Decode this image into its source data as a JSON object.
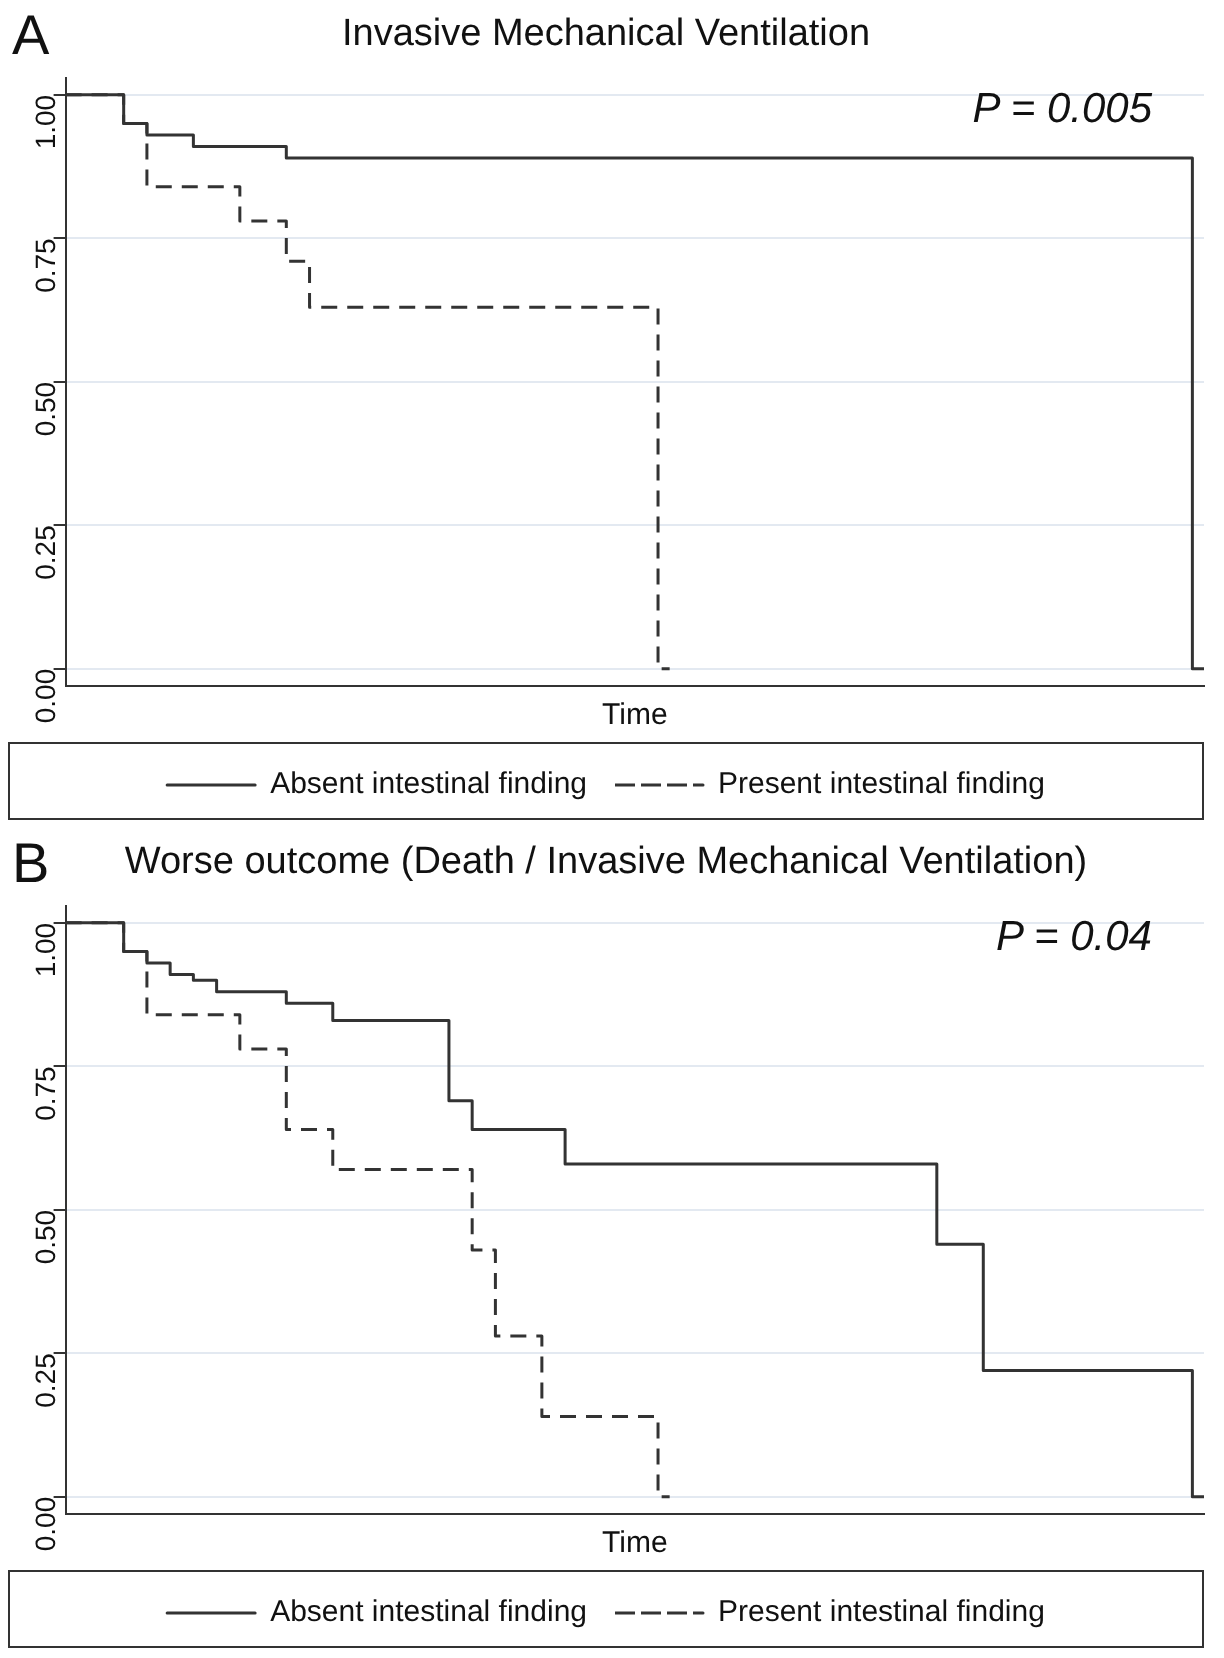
{
  "chart_data": [
    {
      "type": "step",
      "title": "Invasive Mechanical Ventilation",
      "xlabel": "Time",
      "annotations": [
        "A",
        "P = 0.005"
      ],
      "categories": [
        null,
        null,
        null,
        null,
        null,
        null,
        null,
        null,
        null,
        null,
        null,
        null,
        null,
        null,
        null,
        null,
        null,
        null,
        null,
        null,
        null,
        null,
        null,
        null,
        null,
        null,
        null,
        null,
        null,
        null,
        null,
        null,
        null,
        null,
        null,
        null,
        null,
        null,
        null,
        null,
        null,
        null,
        null,
        null,
        null,
        null,
        null,
        null,
        null,
        null
      ],
      "ylim": [
        -0.03,
        1.03
      ],
      "yticks": [
        {
          "value": 0,
          "label": "0.00"
        },
        {
          "value": 0.25,
          "label": "0.25"
        },
        {
          "value": 0.5,
          "label": "0.50"
        },
        {
          "value": 0.75,
          "label": "0.75"
        },
        {
          "value": 1,
          "label": "1.00"
        }
      ],
      "tick_labels": "y",
      "grid": "y",
      "legend": "bottom",
      "marker": "none",
      "series": [
        {
          "name": "Absent intestinal finding",
          "color": "#333333",
          "line_style": "solid",
          "values": [
            1,
            1,
            1,
            0.95,
            0.93,
            0.93,
            0.91,
            0.91,
            0.91,
            0.91,
            0.89,
            0.89,
            0.89,
            0.89,
            0.89,
            0.89,
            0.89,
            0.89,
            0.89,
            0.89,
            0.89,
            0.89,
            0.89,
            0.89,
            0.89,
            0.89,
            0.89,
            0.89,
            0.89,
            0.89,
            0.89,
            0.89,
            0.89,
            0.89,
            0.89,
            0.89,
            0.89,
            0.89,
            0.89,
            0.89,
            0.89,
            0.89,
            0.89,
            0.89,
            0.89,
            0.89,
            0.89,
            0.89,
            0.89,
            0
          ]
        },
        {
          "name": "Present intestinal finding",
          "color": "#333333",
          "line_style": "dashed",
          "values": [
            1,
            1,
            1,
            0.95,
            0.84,
            0.84,
            0.84,
            0.84,
            0.78,
            0.78,
            0.71,
            0.63,
            0.63,
            0.63,
            0.63,
            0.63,
            0.63,
            0.63,
            0.63,
            0.63,
            0.63,
            0.63,
            0.63,
            0.63,
            0.63,
            0.63,
            0,
            null,
            null,
            null,
            null,
            null,
            null,
            null,
            null,
            null,
            null,
            null,
            null,
            null,
            null,
            null,
            null,
            null,
            null,
            null,
            null,
            null,
            null,
            null
          ]
        }
      ]
    },
    {
      "type": "step",
      "title": "Worse outcome (Death / Invasive Mechanical Ventilation)",
      "xlabel": "Time",
      "annotations": [
        "B",
        "P = 0.04"
      ],
      "categories": [
        null,
        null,
        null,
        null,
        null,
        null,
        null,
        null,
        null,
        null,
        null,
        null,
        null,
        null,
        null,
        null,
        null,
        null,
        null,
        null,
        null,
        null,
        null,
        null,
        null,
        null,
        null,
        null,
        null,
        null,
        null,
        null,
        null,
        null,
        null,
        null,
        null,
        null,
        null,
        null,
        null,
        null,
        null,
        null,
        null,
        null,
        null,
        null,
        null,
        null
      ],
      "ylim": [
        -0.03,
        1.03
      ],
      "yticks": [
        {
          "value": 0,
          "label": "0.00"
        },
        {
          "value": 0.25,
          "label": "0.25"
        },
        {
          "value": 0.5,
          "label": "0.50"
        },
        {
          "value": 0.75,
          "label": "0.75"
        },
        {
          "value": 1,
          "label": "1.00"
        }
      ],
      "tick_labels": "y",
      "grid": "y",
      "legend": "bottom",
      "marker": "none",
      "series": [
        {
          "name": "Absent intestinal finding",
          "color": "#333333",
          "line_style": "solid",
          "values": [
            1,
            1,
            1,
            0.95,
            0.93,
            0.91,
            0.9,
            0.88,
            0.88,
            0.88,
            0.86,
            0.86,
            0.83,
            0.83,
            0.83,
            0.83,
            0.83,
            0.69,
            0.64,
            0.64,
            0.64,
            0.64,
            0.58,
            0.58,
            0.58,
            0.58,
            0.58,
            0.58,
            0.58,
            0.58,
            0.58,
            0.58,
            0.58,
            0.58,
            0.58,
            0.58,
            0.58,
            0.58,
            0.44,
            0.44,
            0.22,
            0.22,
            0.22,
            0.22,
            0.22,
            0.22,
            0.22,
            0.22,
            0.22,
            0
          ]
        },
        {
          "name": "Present intestinal finding",
          "color": "#333333",
          "line_style": "dashed",
          "values": [
            1,
            1,
            1,
            0.95,
            0.84,
            0.84,
            0.84,
            0.84,
            0.78,
            0.78,
            0.64,
            0.64,
            0.57,
            0.57,
            0.57,
            0.57,
            0.57,
            0.57,
            0.43,
            0.28,
            0.28,
            0.14,
            0.14,
            0.14,
            0.14,
            0.14,
            0,
            null,
            null,
            null,
            null,
            null,
            null,
            null,
            null,
            null,
            null,
            null,
            null,
            null,
            null,
            null,
            null,
            null,
            null,
            null,
            null,
            null,
            null,
            null
          ]
        }
      ]
    }
  ]
}
